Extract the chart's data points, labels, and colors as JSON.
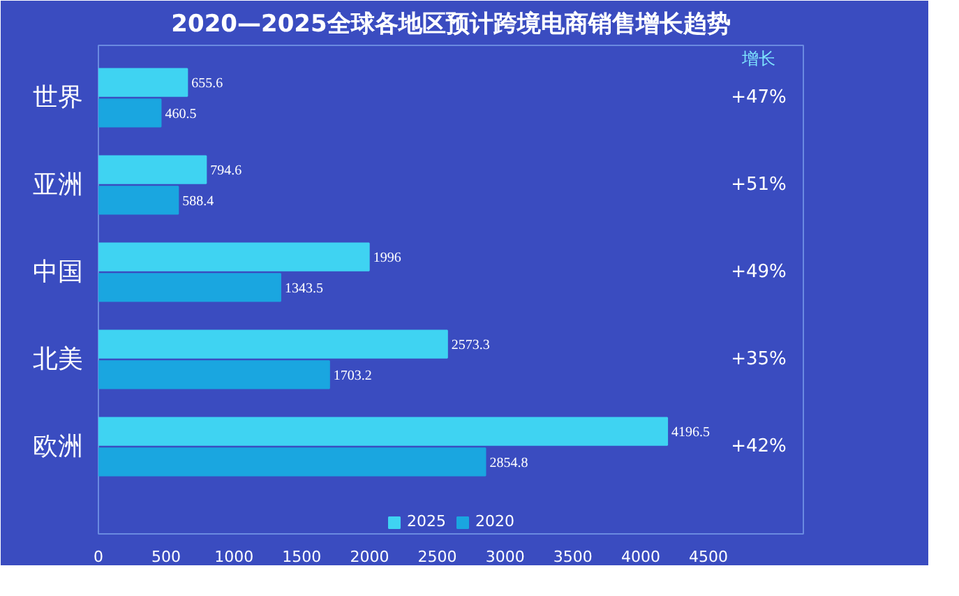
{
  "chart_data": {
    "type": "bar",
    "orientation": "horizontal",
    "title": "2020—2025全球各地区预计跨境电商销售增长趋势",
    "categories": [
      "世界",
      "亚洲",
      "中国",
      "北美",
      "欧洲"
    ],
    "series": [
      {
        "name": "2025",
        "color": "#3fd3f2",
        "values": [
          655.6,
          794.6,
          1996,
          2573.3,
          4196.5
        ]
      },
      {
        "name": "2020",
        "color": "#1aa6e0",
        "values": [
          460.5,
          588.4,
          1343.5,
          1703.2,
          2854.8
        ]
      }
    ],
    "xlim": [
      0,
      5200
    ],
    "xticks": [
      0,
      500,
      1000,
      1500,
      2000,
      2500,
      3000,
      3500,
      4000,
      4500
    ],
    "data_labels": true,
    "legend": "bottom",
    "grid": false,
    "annotations": [
      "增长",
      "+47%",
      "+51%",
      "+49%",
      "+35%",
      "+42%"
    ]
  }
}
